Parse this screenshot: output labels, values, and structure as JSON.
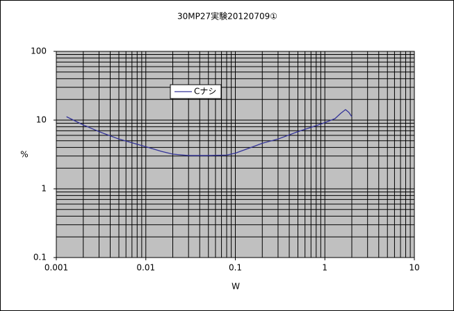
{
  "chart_data": {
    "type": "line",
    "title": "30MP27実験20120709①",
    "x_label": "W",
    "y_label": "%",
    "log_x": true,
    "log_y": true,
    "grid": true,
    "xlim": [
      0.001,
      10
    ],
    "xticks": [
      0.001,
      0.01,
      0.1,
      1,
      10
    ],
    "ylim": [
      0.1,
      100
    ],
    "yticks": [
      0.1,
      1,
      10,
      100
    ],
    "plot_background": "#c0c0c0",
    "series": [
      {
        "name": "Cナシ",
        "color": "#333399",
        "x": [
          0.0013,
          0.002,
          0.003,
          0.005,
          0.01,
          0.015,
          0.02,
          0.03,
          0.05,
          0.08,
          0.1,
          0.15,
          0.2,
          0.3,
          0.5,
          0.8,
          1.0,
          1.3,
          1.5,
          1.7,
          1.85,
          2.0
        ],
        "values": [
          11.2,
          8.5,
          6.8,
          5.3,
          4.1,
          3.5,
          3.2,
          3.05,
          3.05,
          3.1,
          3.3,
          4.0,
          4.6,
          5.3,
          6.8,
          8.3,
          9.2,
          10.5,
          12.5,
          14.2,
          13.0,
          11.2
        ]
      }
    ]
  }
}
